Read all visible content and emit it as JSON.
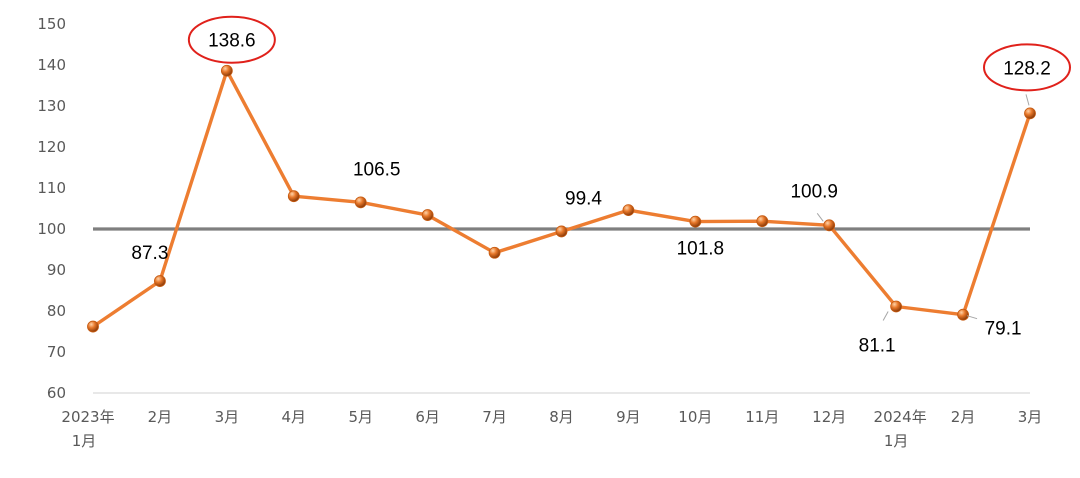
{
  "chart_data": {
    "type": "line",
    "categories": [
      [
        "2023年",
        "1月"
      ],
      [
        "2月"
      ],
      [
        "3月"
      ],
      [
        "4月"
      ],
      [
        "5月"
      ],
      [
        "6月"
      ],
      [
        "7月"
      ],
      [
        "8月"
      ],
      [
        "9月"
      ],
      [
        "10月"
      ],
      [
        "11月"
      ],
      [
        "12月"
      ],
      [
        "2024年",
        "1月"
      ],
      [
        "2月"
      ],
      [
        "3月"
      ]
    ],
    "series": [
      {
        "values": [
          76.2,
          87.3,
          138.6,
          108.0,
          106.5,
          103.4,
          94.2,
          99.4,
          104.6,
          101.8,
          101.9,
          100.9,
          81.1,
          79.1,
          128.2
        ]
      }
    ],
    "data_labels": [
      {
        "index": 1,
        "text": "87.3"
      },
      {
        "index": 2,
        "text": "138.6",
        "highlight": true
      },
      {
        "index": 4,
        "text": "106.5"
      },
      {
        "index": 7,
        "text": "99.4"
      },
      {
        "index": 9,
        "text": "101.8"
      },
      {
        "index": 11,
        "text": "100.9"
      },
      {
        "index": 12,
        "text": "81.1"
      },
      {
        "index": 13,
        "text": "79.1"
      },
      {
        "index": 14,
        "text": "128.2",
        "highlight": true
      }
    ],
    "yticks": [
      60,
      70,
      80,
      90,
      100,
      110,
      120,
      130,
      140,
      150
    ],
    "ylim": [
      60,
      150
    ],
    "reference_line": 100,
    "grid": false,
    "colors": {
      "line": "#ed7d31",
      "marker": "#c55a11",
      "reference": "#7f7f7f",
      "highlight": "#e0211b",
      "axis": "#d9d9d9"
    }
  }
}
